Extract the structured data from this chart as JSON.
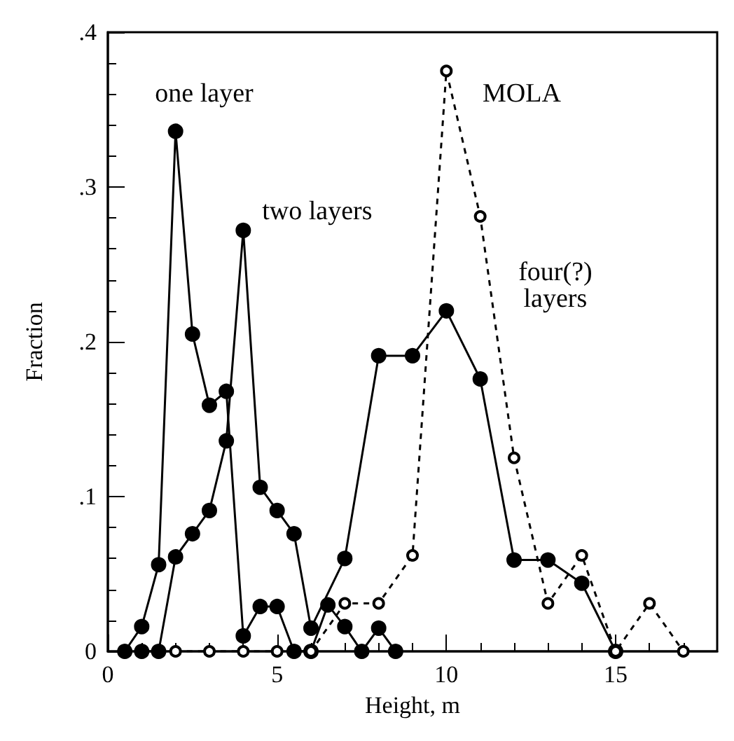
{
  "chart_data": {
    "type": "line",
    "xlabel": "Height, m",
    "ylabel": "Fraction",
    "xlim": [
      0,
      18
    ],
    "xticks": [
      0,
      5,
      10,
      15
    ],
    "ylim": [
      0,
      0.4
    ],
    "yticks": [
      {
        "value": 0,
        "label": "0"
      },
      {
        "value": 0.1,
        "label": ".1"
      },
      {
        "value": 0.2,
        "label": ".2"
      },
      {
        "value": 0.3,
        "label": ".3"
      },
      {
        "value": 0.4,
        "label": ".4"
      }
    ],
    "grid": false,
    "series": [
      {
        "color": "#000000",
        "marker": "circle",
        "line_style": "solid",
        "x": [
          0.5,
          1,
          1.5,
          2,
          2.5,
          3,
          3.5,
          4,
          4.5,
          5,
          5.5,
          6,
          6.5,
          7,
          7.5,
          8,
          8.5
        ],
        "values": [
          0,
          0.016,
          0.056,
          0.336,
          0.205,
          0.159,
          0.168,
          0.01,
          0.029,
          0.029,
          0,
          0,
          0.03,
          0.016,
          0,
          0.015,
          0
        ]
      },
      {
        "color": "#000000",
        "marker": "circle",
        "line_style": "solid",
        "x": [
          1,
          1.5,
          2,
          2.5,
          3,
          3.5,
          4,
          4.5,
          5,
          5.5,
          6,
          7,
          8,
          9,
          10,
          11,
          12,
          13,
          14,
          15
        ],
        "values": [
          0,
          0,
          0.061,
          0.076,
          0.091,
          0.136,
          0.272,
          0.106,
          0.091,
          0.076,
          0.015,
          0.06,
          0.191,
          0.191,
          0.22,
          0.176,
          0.059,
          0.059,
          0.044,
          0
        ]
      },
      {
        "color": "#000000",
        "marker": "open circle",
        "line_style": "dashed",
        "x": [
          2,
          3,
          4,
          5,
          6,
          7,
          8,
          9,
          10,
          11,
          12,
          13,
          14,
          15,
          16,
          17
        ],
        "values": [
          0,
          0,
          0,
          0,
          0,
          0.031,
          0.031,
          0.062,
          0.375,
          0.281,
          0.125,
          0.031,
          0.062,
          0,
          0.031,
          0
        ]
      }
    ],
    "annotations": [
      "one layer",
      "two layers",
      "MOLA",
      "four(?)\nlayers"
    ]
  }
}
